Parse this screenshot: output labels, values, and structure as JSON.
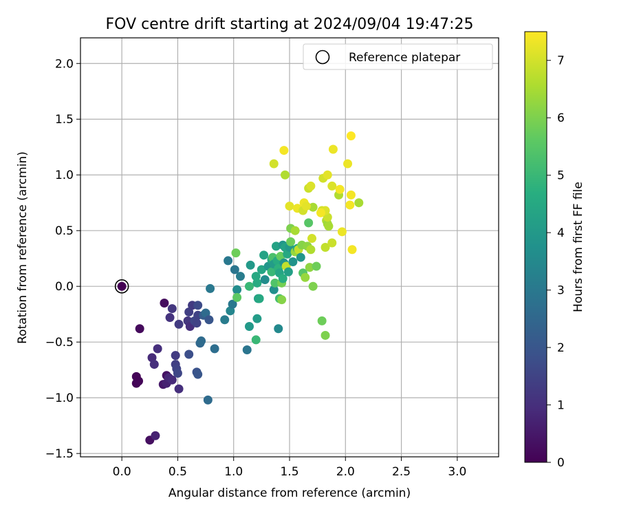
{
  "chart_data": {
    "type": "scatter",
    "title": "FOV centre drift starting at 2024/09/04 19:47:25",
    "xlabel": "Angular distance from reference (arcmin)",
    "ylabel": "Rotation from reference (arcmin)",
    "xlim": [
      -0.37,
      3.37
    ],
    "ylim": [
      -1.53,
      2.23
    ],
    "xticks": [
      0.0,
      0.5,
      1.0,
      1.5,
      2.0,
      2.5,
      3.0
    ],
    "xtick_labels": [
      "0.0",
      "0.5",
      "1.0",
      "1.5",
      "2.0",
      "2.5",
      "3.0"
    ],
    "yticks": [
      -1.5,
      -1.0,
      -0.5,
      0.0,
      0.5,
      1.0,
      1.5,
      2.0
    ],
    "ytick_labels": [
      "−1.5",
      "−1.0",
      "−0.5",
      "0.0",
      "0.5",
      "1.0",
      "1.5",
      "2.0"
    ],
    "grid": true,
    "legend": {
      "position": "top-right",
      "entries": [
        "Reference platepar"
      ]
    },
    "colorbar": {
      "label": "Hours from first FF file",
      "range": [
        0,
        7.5
      ],
      "ticks": [
        0,
        1,
        2,
        3,
        4,
        5,
        6,
        7
      ],
      "tick_labels": [
        "0",
        "1",
        "2",
        "3",
        "4",
        "5",
        "6",
        "7"
      ],
      "colormap": "viridis"
    },
    "reference": {
      "x": 0.0,
      "y": 0.0
    },
    "points": [
      [
        0.13,
        -0.87,
        0.05
      ],
      [
        0.15,
        -0.85,
        0.1
      ],
      [
        0.13,
        -0.81,
        0.08
      ],
      [
        0.16,
        -0.38,
        0.2
      ],
      [
        0.25,
        -1.38,
        0.3
      ],
      [
        0.38,
        -0.15,
        0.25
      ],
      [
        0.4,
        -0.8,
        0.35
      ],
      [
        0.37,
        -0.88,
        0.5
      ],
      [
        0.3,
        -1.34,
        0.7
      ],
      [
        0.27,
        -0.64,
        0.9
      ],
      [
        0.29,
        -0.7,
        1.0
      ],
      [
        0.32,
        -0.56,
        1.0
      ],
      [
        0.4,
        -0.87,
        0.7
      ],
      [
        0.42,
        -0.82,
        0.8
      ],
      [
        0.45,
        -0.84,
        0.9
      ],
      [
        0.43,
        -0.28,
        1.1
      ],
      [
        0.45,
        -0.2,
        1.2
      ],
      [
        0.48,
        -0.7,
        1.4
      ],
      [
        0.49,
        -0.74,
        1.5
      ],
      [
        0.48,
        -0.62,
        1.3
      ],
      [
        0.5,
        -0.78,
        1.6
      ],
      [
        0.51,
        -0.92,
        1.0
      ],
      [
        0.51,
        -0.34,
        1.3
      ],
      [
        0.59,
        -0.31,
        1.2
      ],
      [
        0.6,
        -0.23,
        1.4
      ],
      [
        0.61,
        -0.36,
        1.0
      ],
      [
        0.63,
        -0.17,
        1.3
      ],
      [
        0.65,
        -0.31,
        1.6
      ],
      [
        0.67,
        -0.33,
        1.5
      ],
      [
        0.68,
        -0.17,
        1.7
      ],
      [
        0.68,
        -0.26,
        1.5
      ],
      [
        0.6,
        -0.61,
        1.8
      ],
      [
        0.67,
        -0.77,
        1.9
      ],
      [
        0.68,
        -0.79,
        2.0
      ],
      [
        0.7,
        -0.51,
        2.5
      ],
      [
        0.71,
        -0.49,
        2.6
      ],
      [
        0.73,
        -0.26,
        2.2
      ],
      [
        0.75,
        -0.24,
        2.6
      ],
      [
        0.78,
        -0.3,
        2.0
      ],
      [
        0.77,
        -1.02,
        2.6
      ],
      [
        0.79,
        -0.02,
        3.0
      ],
      [
        0.83,
        -0.56,
        2.7
      ],
      [
        0.92,
        -0.3,
        3.1
      ],
      [
        0.95,
        0.23,
        3.0
      ],
      [
        0.97,
        -0.22,
        3.4
      ],
      [
        0.99,
        -0.16,
        3.0
      ],
      [
        1.01,
        0.15,
        2.9
      ],
      [
        1.02,
        0.3,
        5.8
      ],
      [
        1.03,
        -0.03,
        3.6
      ],
      [
        1.03,
        -0.1,
        5.6
      ],
      [
        1.06,
        0.09,
        3.1
      ],
      [
        1.12,
        -0.57,
        2.9
      ],
      [
        1.14,
        0.0,
        5.0
      ],
      [
        1.14,
        -0.36,
        4.0
      ],
      [
        1.15,
        0.19,
        4.0
      ],
      [
        1.2,
        0.09,
        4.5
      ],
      [
        1.21,
        0.03,
        4.6
      ],
      [
        1.21,
        -0.29,
        4.1
      ],
      [
        1.22,
        -0.11,
        4.2
      ],
      [
        1.23,
        -0.11,
        4.5
      ],
      [
        1.2,
        -0.48,
        5.0
      ],
      [
        1.25,
        0.15,
        4.4
      ],
      [
        1.27,
        0.28,
        4.3
      ],
      [
        1.28,
        0.06,
        3.6
      ],
      [
        1.31,
        0.18,
        3.9
      ],
      [
        1.34,
        0.24,
        4.5
      ],
      [
        1.35,
        0.26,
        5.3
      ],
      [
        1.34,
        0.13,
        5.0
      ],
      [
        1.36,
        -0.03,
        3.7
      ],
      [
        1.36,
        0.2,
        4.1
      ],
      [
        1.37,
        0.03,
        5.4
      ],
      [
        1.38,
        0.36,
        4.3
      ],
      [
        1.39,
        0.23,
        4.6
      ],
      [
        1.4,
        -0.38,
        3.5
      ],
      [
        1.4,
        0.16,
        4.8
      ],
      [
        1.41,
        -0.11,
        5.2
      ],
      [
        1.41,
        0.12,
        4.4
      ],
      [
        1.42,
        0.27,
        5.7
      ],
      [
        1.43,
        0.03,
        5.9
      ],
      [
        1.43,
        -0.12,
        6.1
      ],
      [
        1.44,
        0.37,
        3.9
      ],
      [
        1.44,
        0.07,
        4.7
      ],
      [
        1.45,
        0.21,
        3.9
      ],
      [
        1.46,
        0.35,
        4.3
      ],
      [
        1.47,
        0.18,
        6.8
      ],
      [
        1.48,
        0.29,
        4.5
      ],
      [
        1.49,
        0.13,
        4.2
      ],
      [
        1.5,
        0.35,
        4.0
      ],
      [
        1.51,
        0.4,
        5.8
      ],
      [
        1.51,
        0.52,
        6.0
      ],
      [
        1.53,
        0.22,
        3.8
      ],
      [
        1.55,
        0.31,
        6.3
      ],
      [
        1.55,
        0.5,
        6.5
      ],
      [
        1.57,
        0.34,
        4.5
      ],
      [
        1.58,
        0.33,
        6.8
      ],
      [
        1.6,
        0.26,
        3.9
      ],
      [
        1.61,
        0.37,
        6.1
      ],
      [
        1.62,
        0.12,
        5.5
      ],
      [
        1.64,
        0.08,
        6.3
      ],
      [
        1.66,
        0.36,
        6.2
      ],
      [
        1.67,
        0.57,
        5.5
      ],
      [
        1.68,
        0.17,
        6.2
      ],
      [
        1.69,
        0.33,
        6.6
      ],
      [
        1.7,
        0.43,
        7.0
      ],
      [
        1.71,
        0.0,
        6.0
      ],
      [
        1.71,
        0.71,
        6.5
      ],
      [
        1.74,
        0.18,
        5.8
      ],
      [
        1.79,
        -0.31,
        5.8
      ],
      [
        1.82,
        -0.44,
        6.0
      ],
      [
        1.82,
        0.35,
        6.8
      ],
      [
        1.83,
        0.59,
        6.6
      ],
      [
        1.84,
        0.56,
        6.4
      ],
      [
        1.84,
        0.62,
        6.9
      ],
      [
        1.85,
        0.54,
        6.5
      ],
      [
        1.88,
        0.39,
        6.9
      ],
      [
        1.79,
        0.68,
        7.0
      ],
      [
        1.82,
        0.68,
        7.1
      ],
      [
        1.78,
        0.66,
        7.4
      ],
      [
        1.36,
        1.1,
        7.0
      ],
      [
        1.45,
        1.22,
        7.4
      ],
      [
        1.46,
        1.0,
        6.6
      ],
      [
        1.5,
        0.72,
        7.2
      ],
      [
        1.57,
        0.7,
        7.3
      ],
      [
        1.62,
        0.68,
        7.0
      ],
      [
        1.63,
        0.75,
        7.3
      ],
      [
        1.65,
        0.72,
        7.2
      ],
      [
        1.67,
        0.88,
        6.9
      ],
      [
        1.69,
        0.9,
        7.1
      ],
      [
        1.8,
        0.97,
        7.0
      ],
      [
        1.84,
        1.0,
        7.2
      ],
      [
        1.88,
        0.9,
        7.1
      ],
      [
        1.89,
        1.23,
        7.3
      ],
      [
        1.94,
        0.82,
        6.6
      ],
      [
        1.95,
        0.87,
        7.4
      ],
      [
        1.97,
        0.49,
        7.3
      ],
      [
        2.02,
        1.1,
        7.3
      ],
      [
        2.04,
        0.73,
        7.4
      ],
      [
        2.05,
        1.35,
        7.5
      ],
      [
        2.05,
        0.82,
        7.4
      ],
      [
        2.06,
        0.33,
        7.4
      ],
      [
        2.12,
        0.75,
        6.5
      ]
    ]
  }
}
